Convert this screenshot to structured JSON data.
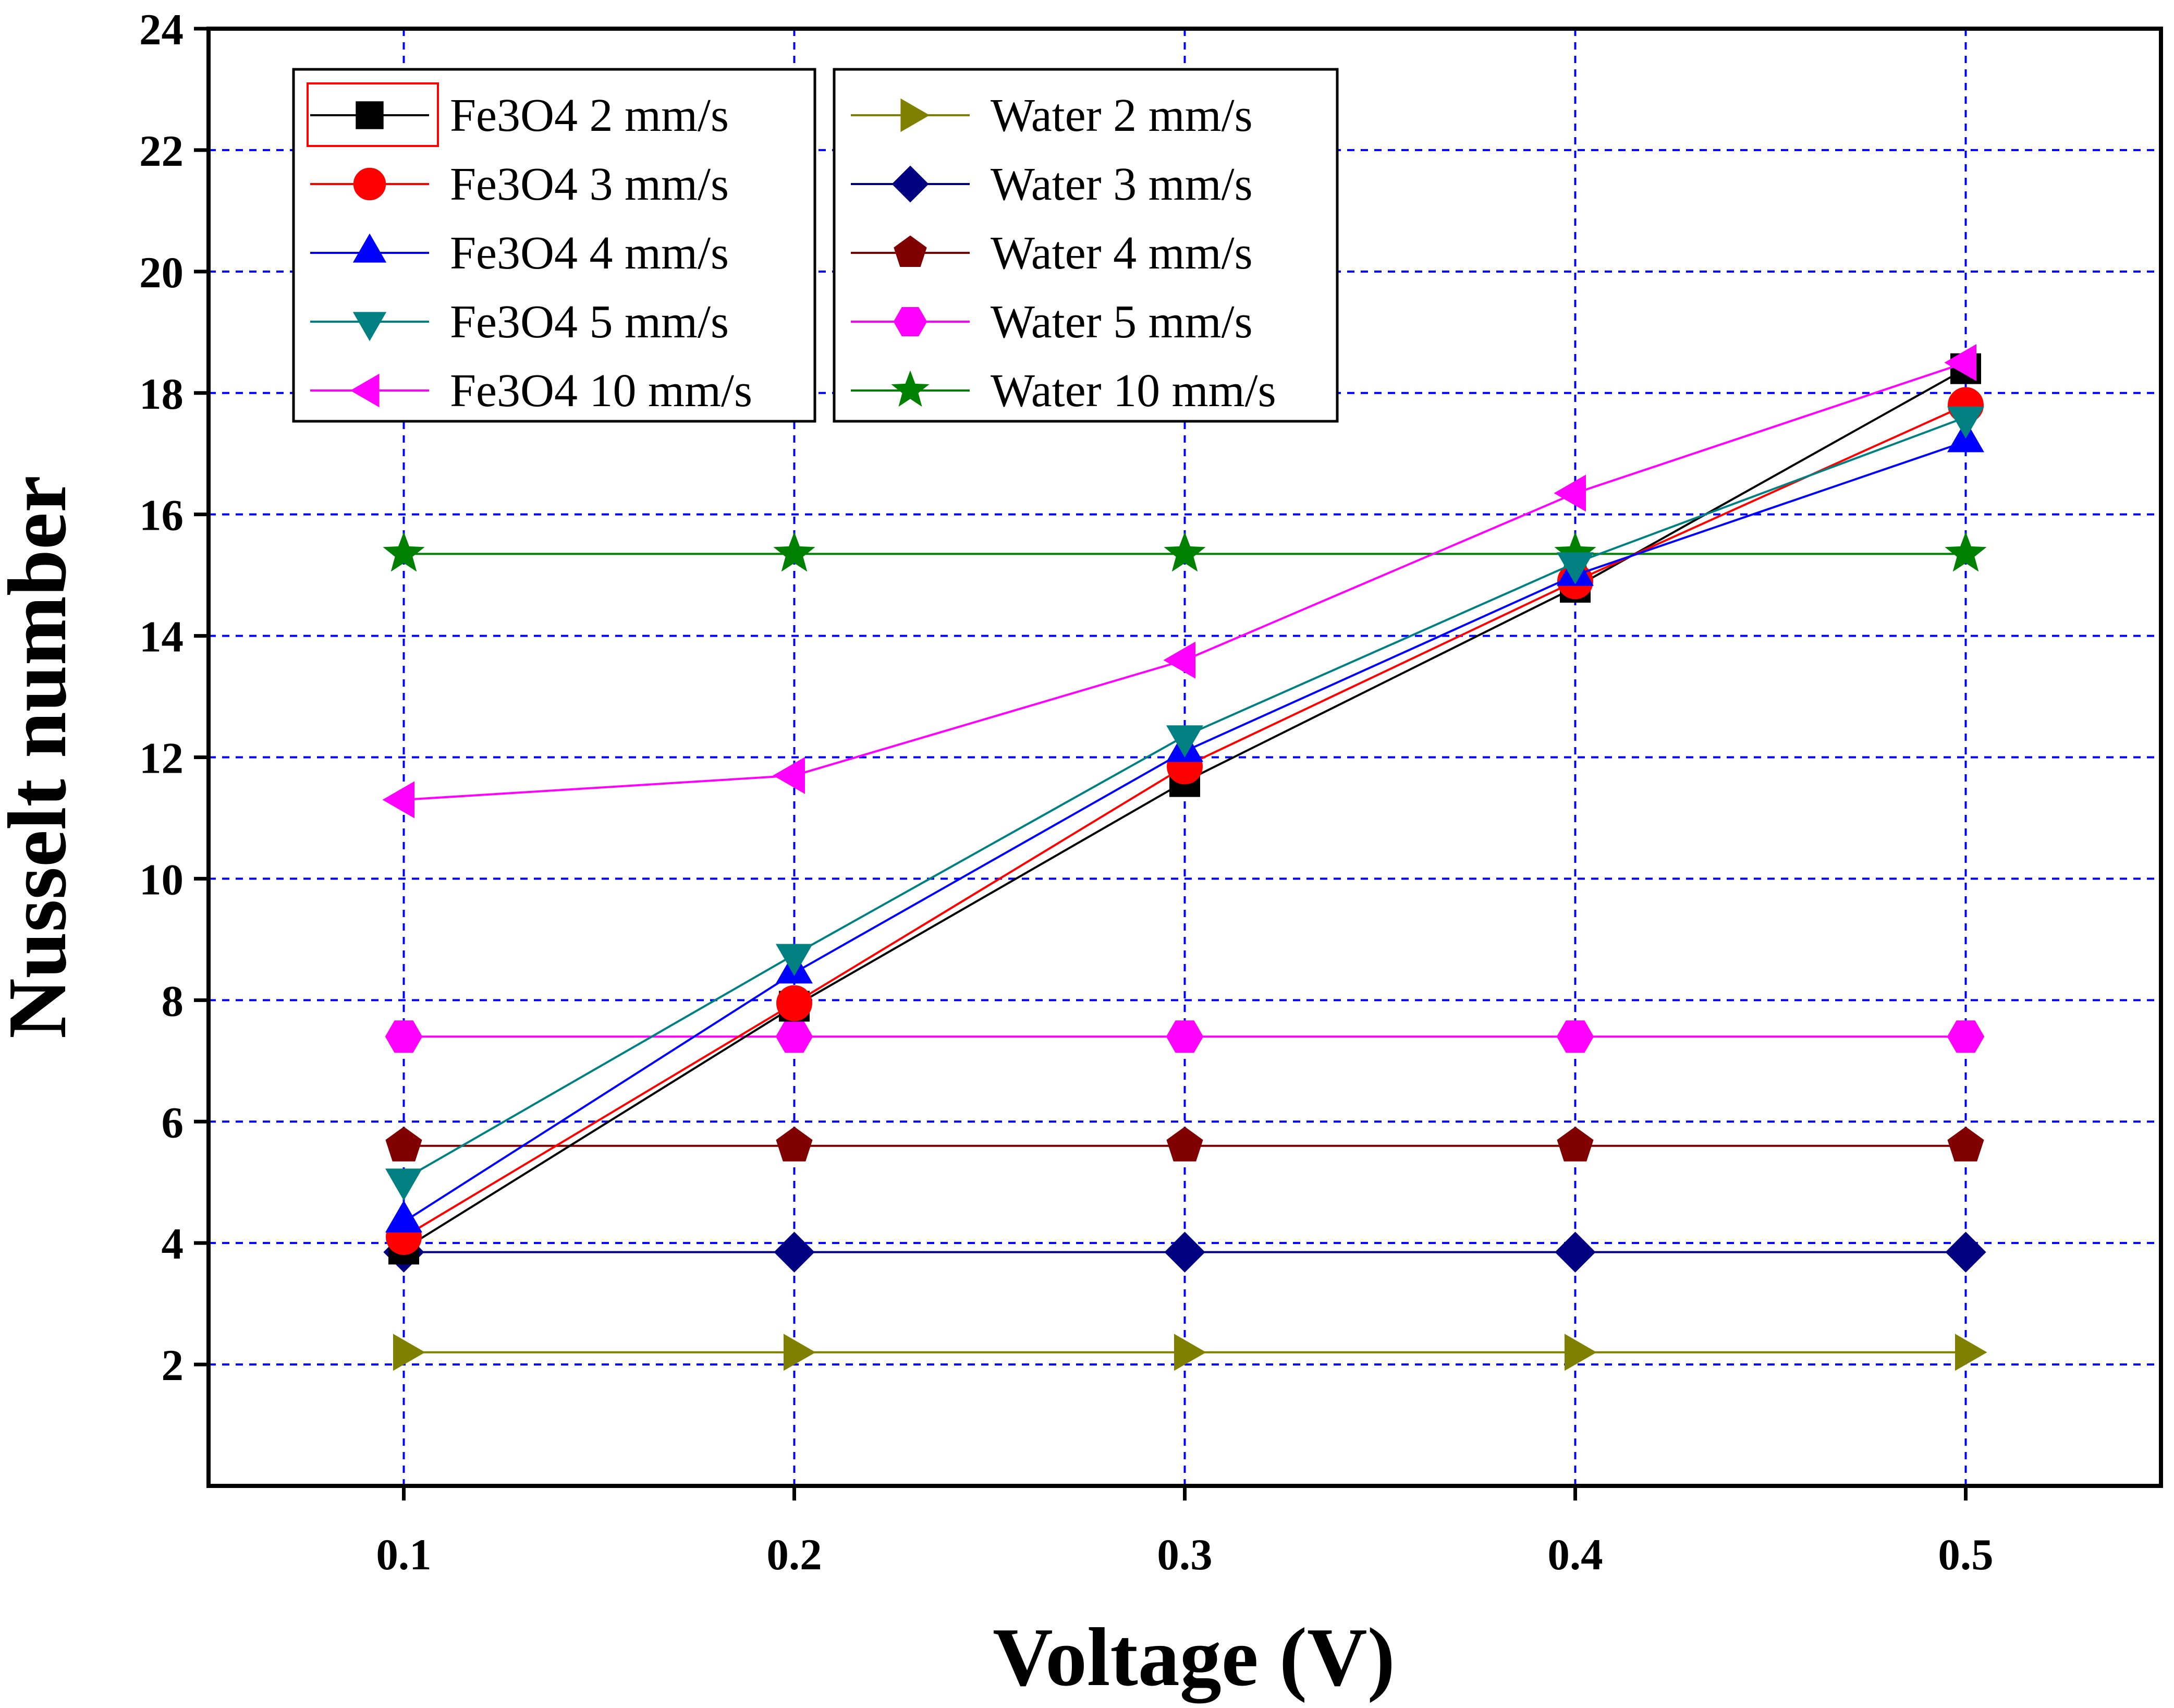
{
  "chart_data": {
    "type": "line",
    "title": "",
    "xlabel": "Voltage (V)",
    "ylabel": "Nusselt number",
    "x": [
      0.1,
      0.2,
      0.3,
      0.4,
      0.5
    ],
    "xlim": [
      0.05,
      0.55
    ],
    "ylim": [
      0,
      24
    ],
    "xticks": [
      0.1,
      0.2,
      0.3,
      0.4,
      0.5
    ],
    "xtick_labels": [
      "0.1",
      "0.2",
      "0.3",
      "0.4",
      "0.5"
    ],
    "yticks": [
      2,
      4,
      6,
      8,
      10,
      12,
      14,
      16,
      18,
      20,
      22,
      24
    ],
    "ytick_labels": [
      "2",
      "4",
      "6",
      "8",
      "10",
      "12",
      "14",
      "16",
      "18",
      "20",
      "22",
      "24"
    ],
    "grid": true,
    "legend_position": "top-left",
    "series": [
      {
        "name": "Fe3O4 2 mm/s",
        "color": "#000000",
        "marker": "square",
        "values": [
          3.9,
          7.9,
          11.6,
          14.8,
          18.4
        ]
      },
      {
        "name": "Fe3O4 3 mm/s",
        "color": "#ff0000",
        "marker": "circle",
        "values": [
          4.1,
          7.95,
          11.85,
          14.9,
          17.8
        ]
      },
      {
        "name": "Fe3O4 4 mm/s",
        "color": "#0000ff",
        "marker": "triangle-up",
        "values": [
          4.35,
          8.45,
          12.1,
          15.0,
          17.2
        ]
      },
      {
        "name": "Fe3O4 5 mm/s",
        "color": "#008080",
        "marker": "triangle-down",
        "values": [
          5.05,
          8.75,
          12.35,
          15.2,
          17.6
        ]
      },
      {
        "name": "Fe3O4 10 mm/s",
        "color": "#ff00ff",
        "marker": "triangle-left",
        "values": [
          11.3,
          11.7,
          13.6,
          16.35,
          18.5
        ]
      },
      {
        "name": "Water 2 mm/s",
        "color": "#808000",
        "marker": "triangle-right",
        "values": [
          2.2,
          2.2,
          2.2,
          2.2,
          2.2
        ]
      },
      {
        "name": "Water 3 mm/s",
        "color": "#000080",
        "marker": "diamond",
        "values": [
          3.85,
          3.85,
          3.85,
          3.85,
          3.85
        ]
      },
      {
        "name": "Water 4 mm/s",
        "color": "#800000",
        "marker": "pentagon",
        "values": [
          5.6,
          5.6,
          5.6,
          5.6,
          5.6
        ]
      },
      {
        "name": "Water 5 mm/s",
        "color": "#ff00ff",
        "marker": "hexagon",
        "values": [
          7.4,
          7.4,
          7.4,
          7.4,
          7.4
        ]
      },
      {
        "name": "Water 10 mm/s",
        "color": "#008000",
        "marker": "star",
        "values": [
          15.35,
          15.35,
          15.35,
          15.35,
          15.35
        ]
      }
    ],
    "legend_columns": [
      [
        "Fe3O4 2 mm/s",
        "Fe3O4 3 mm/s",
        "Fe3O4 4 mm/s",
        "Fe3O4 5 mm/s",
        "Fe3O4 10 mm/s"
      ],
      [
        "Water 2 mm/s",
        "Water 3 mm/s",
        "Water 4 mm/s",
        "Water 5 mm/s",
        "Water 10 mm/s"
      ]
    ],
    "grid_color": "#0000ff",
    "marker_fill": {
      "Fe3O4 2 mm/s": "#000000",
      "Fe3O4 3 mm/s": "#ff0000",
      "Fe3O4 4 mm/s": "#0000ff",
      "Fe3O4 5 mm/s": "#008080",
      "Fe3O4 10 mm/s": "#ff00ff",
      "Water 2 mm/s": "#808000",
      "Water 3 mm/s": "#000080",
      "Water 4 mm/s": "#800000",
      "Water 5 mm/s": "#ff00ff",
      "Water 10 mm/s": "#008000"
    }
  }
}
